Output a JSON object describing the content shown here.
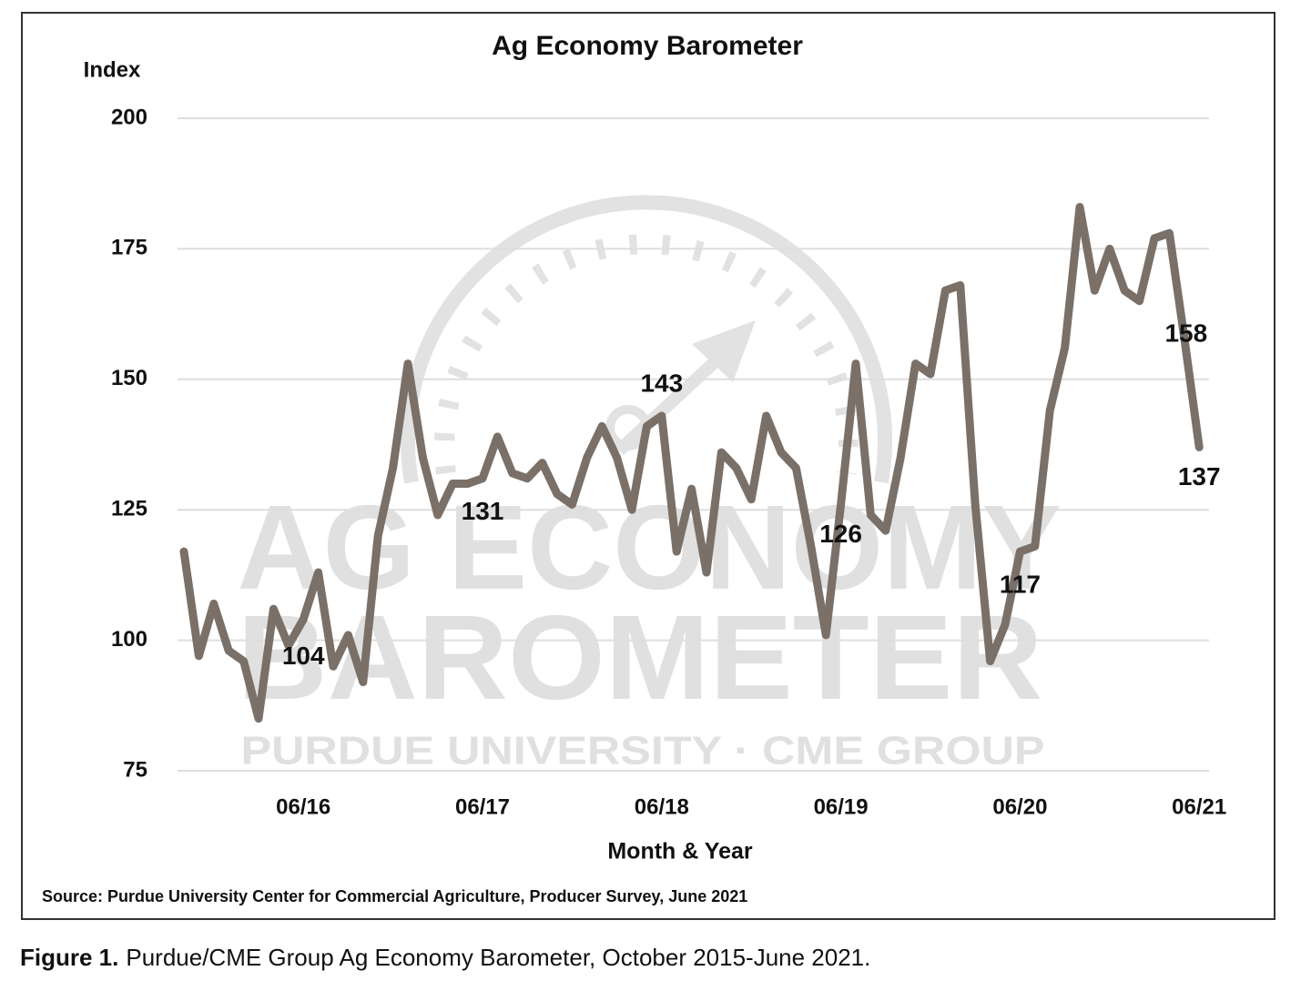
{
  "chart_data": {
    "type": "line",
    "title": "Ag Economy Barometer",
    "y_label": "Index",
    "x_label": "Month & Year",
    "source": "Source: Purdue University Center for Commercial Agriculture, Producer Survey, June 2021",
    "watermark": [
      "AG ECONOMY",
      "BAROMETER",
      "PURDUE UNIVERSITY · CME GROUP"
    ],
    "caption": {
      "label": "Figure 1.",
      "text": "Purdue/CME Group Ag Economy Barometer, October 2015-June 2021."
    },
    "categories": [
      null,
      null,
      null,
      null,
      null,
      null,
      null,
      null,
      "06/16",
      null,
      null,
      null,
      null,
      null,
      null,
      null,
      null,
      null,
      null,
      null,
      "06/17",
      null,
      null,
      null,
      null,
      null,
      null,
      null,
      null,
      null,
      null,
      null,
      "06/18",
      null,
      null,
      null,
      null,
      null,
      null,
      null,
      null,
      null,
      null,
      null,
      "06/19",
      null,
      null,
      null,
      null,
      null,
      null,
      null,
      null,
      null,
      null,
      null,
      "06/20",
      null,
      null,
      null,
      null,
      null,
      null,
      null,
      null,
      null,
      null,
      null,
      "06/21"
    ],
    "series": [
      {
        "name": "Ag Economy Barometer",
        "color": "#7a7068",
        "values": [
          117,
          97,
          107,
          98,
          96,
          85,
          106,
          99,
          104,
          113,
          95,
          101,
          92,
          120,
          133,
          153,
          135,
          124,
          130,
          130,
          131,
          139,
          132,
          131,
          134,
          128,
          126,
          135,
          141,
          135,
          125,
          141,
          143,
          117,
          129,
          113,
          136,
          133,
          127,
          143,
          136,
          133,
          118,
          101,
          126,
          153,
          124,
          121,
          135,
          153,
          151,
          167,
          168,
          126,
          96,
          103,
          117,
          118,
          144,
          156,
          183,
          167,
          175,
          167,
          165,
          177,
          178,
          158,
          137
        ],
        "value_labels": [
          null,
          null,
          null,
          null,
          null,
          null,
          null,
          null,
          "104",
          null,
          null,
          null,
          null,
          null,
          null,
          null,
          null,
          null,
          null,
          null,
          "131",
          null,
          null,
          null,
          null,
          null,
          null,
          null,
          null,
          null,
          null,
          null,
          "143",
          null,
          null,
          null,
          null,
          null,
          null,
          null,
          null,
          null,
          null,
          null,
          "126",
          null,
          null,
          null,
          null,
          null,
          null,
          null,
          null,
          null,
          null,
          null,
          "117",
          null,
          null,
          null,
          null,
          null,
          null,
          null,
          null,
          null,
          null,
          "158",
          "137"
        ]
      }
    ],
    "ylim": [
      75,
      200
    ],
    "yticks": [
      75,
      100,
      125,
      150,
      175,
      200
    ],
    "grid": true
  }
}
